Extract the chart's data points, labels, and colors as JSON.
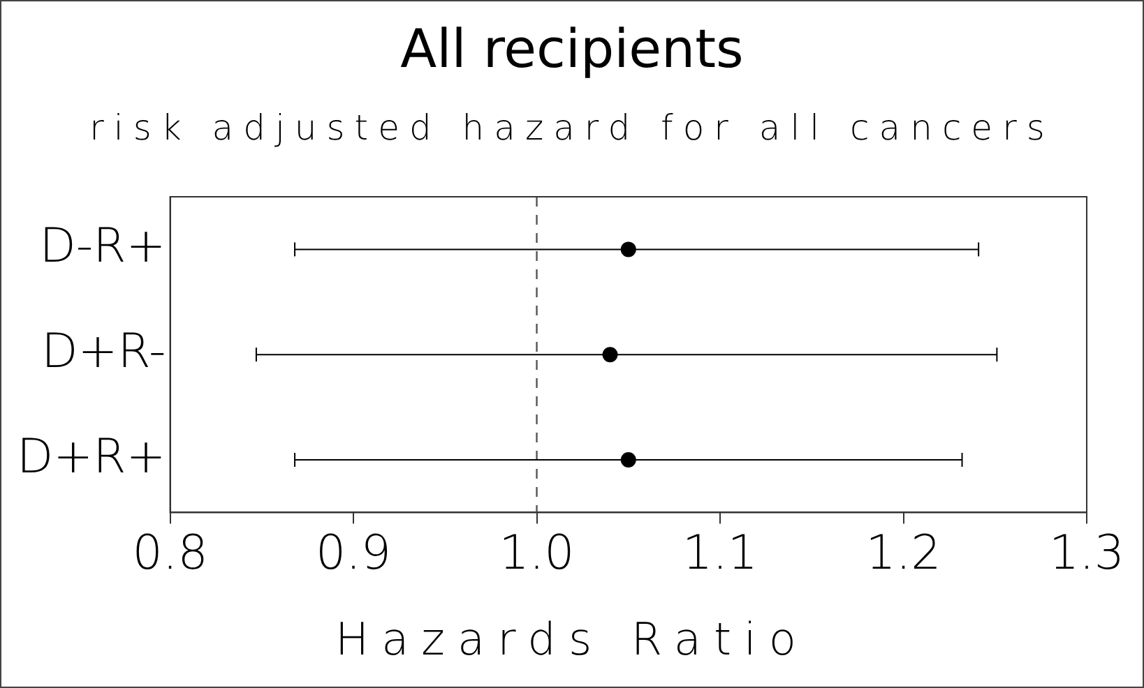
{
  "chart_data": {
    "type": "scatter",
    "orientation": "horizontal",
    "title": "All recipients",
    "subtitle": "risk adjusted hazard for all cancers",
    "xlabel": "Hazards Ratio",
    "categories": [
      "D-R+",
      "D+R-",
      "D+R+"
    ],
    "values": [
      1.05,
      1.04,
      1.05
    ],
    "errors": [
      [
        0.868,
        1.241
      ],
      [
        0.847,
        1.251
      ],
      [
        0.868,
        1.232
      ]
    ],
    "color": "#000000",
    "marker": "circle",
    "legend": false,
    "grid": false,
    "xlim": [
      0.8,
      1.3
    ],
    "xticks": [
      {
        "value": 0.8,
        "label": "0.8"
      },
      {
        "value": 0.9,
        "label": "0.9"
      },
      {
        "value": 1.0,
        "label": "1.0"
      },
      {
        "value": 1.1,
        "label": "1.1"
      },
      {
        "value": 1.2,
        "label": "1.2"
      },
      {
        "value": 1.3,
        "label": "1.3"
      }
    ],
    "ref_lines": [
      {
        "axis": "x",
        "value": 1.0,
        "line_style": "dashed",
        "color": "#555555"
      }
    ]
  }
}
